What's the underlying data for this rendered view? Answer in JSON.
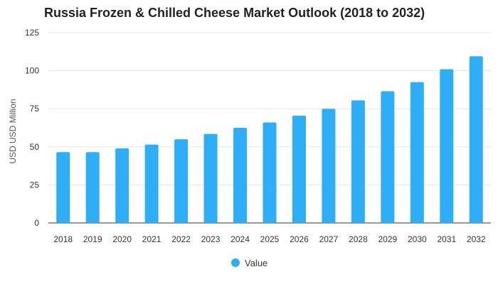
{
  "colors": {
    "bar": "#2eaef7",
    "grid": "#e6e6e6",
    "axis": "#333333"
  },
  "chart_data": {
    "type": "bar",
    "title": "Russia Frozen & Chilled Cheese Market Outlook (2018 to 2032)",
    "xlabel": "",
    "ylabel": "USD USD Million",
    "ylim": [
      0,
      125
    ],
    "yticks": [
      0,
      25,
      50,
      75,
      100,
      125
    ],
    "grid": true,
    "legend_position": "bottom",
    "categories": [
      "2018",
      "2019",
      "2020",
      "2021",
      "2022",
      "2023",
      "2024",
      "2025",
      "2026",
      "2027",
      "2028",
      "2029",
      "2030",
      "2031",
      "2032"
    ],
    "series": [
      {
        "name": "Value",
        "values": [
          46.5,
          46.5,
          49,
          51.5,
          55,
          58.5,
          62.5,
          66,
          70.5,
          75,
          80.5,
          86.5,
          92.5,
          101,
          109.5
        ]
      }
    ]
  }
}
